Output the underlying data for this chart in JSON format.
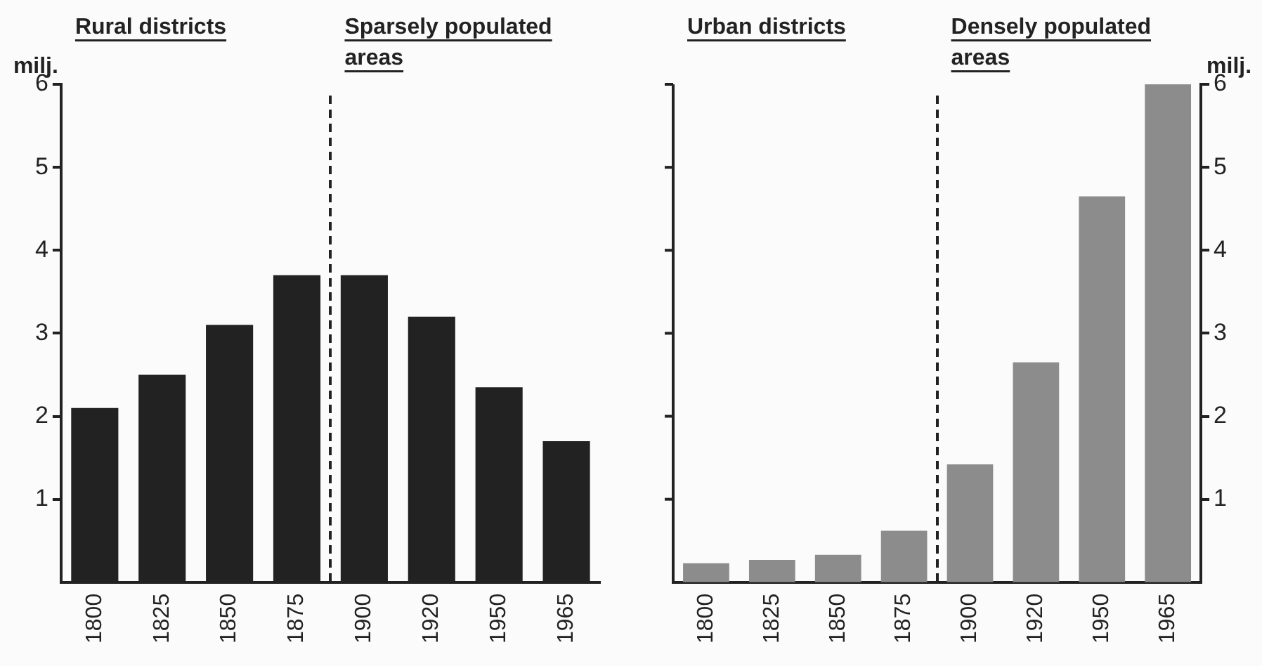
{
  "chart_data": [
    {
      "type": "bar",
      "ylabel": "milj.",
      "categories": [
        "1800",
        "1825",
        "1850",
        "1875",
        "1900",
        "1920",
        "1950",
        "1965"
      ],
      "values": [
        2.1,
        2.5,
        3.1,
        3.7,
        3.7,
        3.2,
        2.35,
        1.7
      ],
      "color": "#222222",
      "ylim": [
        0,
        6
      ],
      "yticks": [
        1,
        2,
        3,
        4,
        5,
        6
      ],
      "annotations": [
        "Rural districts",
        "Sparsely populated areas"
      ]
    },
    {
      "type": "bar",
      "y2label": "milj.",
      "categories": [
        "1800",
        "1825",
        "1850",
        "1875",
        "1900",
        "1920",
        "1950",
        "1965"
      ],
      "series": [
        {
          "axis": "y2",
          "color": "#8c8c8c",
          "values": [
            0.23,
            0.27,
            0.33,
            0.62,
            1.42,
            2.65,
            4.65,
            6.0
          ]
        }
      ],
      "y2lim": [
        0,
        6
      ],
      "y2ticks": [
        1,
        2,
        3,
        4,
        5,
        6
      ],
      "annotations": [
        "Urban districts",
        "Densely populated areas"
      ]
    }
  ]
}
